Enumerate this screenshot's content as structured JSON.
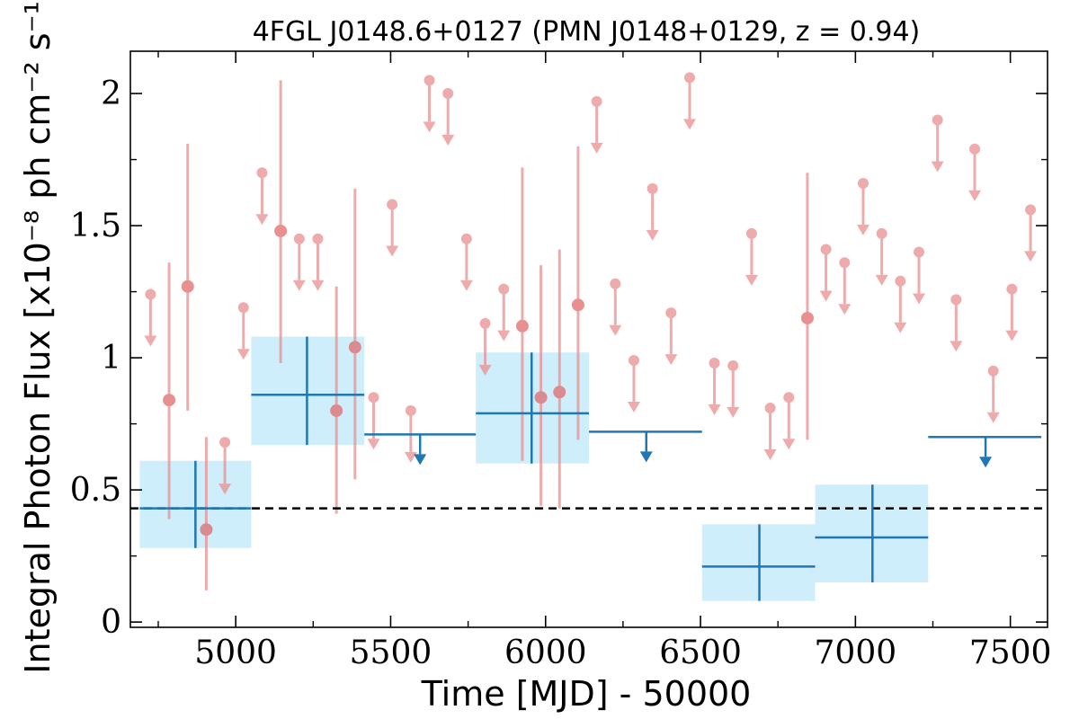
{
  "chart_data": {
    "type": "scatter",
    "title": "4FGL J0148.6+0127 (PMN J0148+0129, z = 0.94)",
    "xlabel": "Time [MJD] - 50000",
    "ylabel": "Integral Photon Flux [x10⁻⁸ ph cm⁻² s⁻¹]",
    "xlim": [
      4660,
      7620
    ],
    "ylim": [
      -0.02,
      2.16
    ],
    "x_ticks": [
      5000,
      5500,
      6000,
      6500,
      7000,
      7500
    ],
    "x_tick_labels": [
      "5000",
      "5500",
      "6000",
      "6500",
      "7000",
      "7500"
    ],
    "y_ticks": [
      0,
      0.5,
      1,
      1.5,
      2
    ],
    "y_tick_labels": [
      "0",
      "0.5",
      "1",
      "1.5",
      "2"
    ],
    "baseline": 0.43,
    "colors": {
      "short_bins": "#e88c8c",
      "long_bins": "#1f77b4",
      "long_bins_fill": "#cfeefc",
      "baseline": "#000000"
    },
    "series": [
      {
        "kind": "short_bin_detections",
        "points": [
          {
            "x": 4785,
            "y": 0.84,
            "ylow": 0.39,
            "yhigh": 1.36
          },
          {
            "x": 4845,
            "y": 1.27,
            "ylow": 0.8,
            "yhigh": 1.81
          },
          {
            "x": 4905,
            "y": 0.35,
            "ylow": 0.12,
            "yhigh": 0.7
          },
          {
            "x": 5145,
            "y": 1.48,
            "ylow": 0.98,
            "yhigh": 2.05
          },
          {
            "x": 5325,
            "y": 0.8,
            "ylow": 0.41,
            "yhigh": 1.27
          },
          {
            "x": 5385,
            "y": 1.04,
            "ylow": 0.54,
            "yhigh": 1.64
          },
          {
            "x": 5925,
            "y": 1.12,
            "ylow": 0.61,
            "yhigh": 1.72
          },
          {
            "x": 5985,
            "y": 0.85,
            "ylow": 0.44,
            "yhigh": 1.35
          },
          {
            "x": 6045,
            "y": 0.87,
            "ylow": 0.43,
            "yhigh": 1.41
          },
          {
            "x": 6105,
            "y": 1.2,
            "ylow": 0.69,
            "yhigh": 1.8
          },
          {
            "x": 6845,
            "y": 1.15,
            "ylow": 0.69,
            "yhigh": 1.7
          }
        ]
      },
      {
        "kind": "short_bin_upper_limits",
        "points": [
          {
            "x": 4725,
            "y": 1.24
          },
          {
            "x": 4965,
            "y": 0.68
          },
          {
            "x": 5025,
            "y": 1.19
          },
          {
            "x": 5085,
            "y": 1.7
          },
          {
            "x": 5205,
            "y": 1.45
          },
          {
            "x": 5265,
            "y": 1.45
          },
          {
            "x": 5445,
            "y": 0.85
          },
          {
            "x": 5505,
            "y": 1.58
          },
          {
            "x": 5565,
            "y": 0.8
          },
          {
            "x": 5625,
            "y": 2.05
          },
          {
            "x": 5685,
            "y": 2.0
          },
          {
            "x": 5745,
            "y": 1.45
          },
          {
            "x": 5805,
            "y": 1.13
          },
          {
            "x": 5865,
            "y": 1.26
          },
          {
            "x": 6165,
            "y": 1.97
          },
          {
            "x": 6225,
            "y": 1.28
          },
          {
            "x": 6285,
            "y": 0.99
          },
          {
            "x": 6345,
            "y": 1.64
          },
          {
            "x": 6405,
            "y": 1.17
          },
          {
            "x": 6465,
            "y": 2.06
          },
          {
            "x": 6545,
            "y": 0.98
          },
          {
            "x": 6605,
            "y": 0.97
          },
          {
            "x": 6665,
            "y": 1.47
          },
          {
            "x": 6725,
            "y": 0.81
          },
          {
            "x": 6785,
            "y": 0.85
          },
          {
            "x": 6905,
            "y": 1.41
          },
          {
            "x": 6965,
            "y": 1.36
          },
          {
            "x": 7025,
            "y": 1.66
          },
          {
            "x": 7085,
            "y": 1.47
          },
          {
            "x": 7145,
            "y": 1.29
          },
          {
            "x": 7205,
            "y": 1.4
          },
          {
            "x": 7265,
            "y": 1.9
          },
          {
            "x": 7325,
            "y": 1.22
          },
          {
            "x": 7385,
            "y": 1.79
          },
          {
            "x": 7445,
            "y": 0.95
          },
          {
            "x": 7505,
            "y": 1.26
          },
          {
            "x": 7565,
            "y": 1.56
          }
        ]
      },
      {
        "kind": "long_bin_detections",
        "points": [
          {
            "x": 4870,
            "x0": 4690,
            "x1": 5050,
            "y": 0.43,
            "ylow": 0.28,
            "yhigh": 0.61
          },
          {
            "x": 5230,
            "x0": 5050,
            "x1": 5415,
            "y": 0.86,
            "ylow": 0.67,
            "yhigh": 1.08
          },
          {
            "x": 5955,
            "x0": 5775,
            "x1": 6140,
            "y": 0.79,
            "ylow": 0.6,
            "yhigh": 1.02
          },
          {
            "x": 6690,
            "x0": 6505,
            "x1": 6870,
            "y": 0.21,
            "ylow": 0.08,
            "yhigh": 0.37
          },
          {
            "x": 7055,
            "x0": 6870,
            "x1": 7235,
            "y": 0.32,
            "ylow": 0.15,
            "yhigh": 0.52
          }
        ]
      },
      {
        "kind": "long_bin_upper_limits",
        "points": [
          {
            "x": 5595,
            "x0": 5415,
            "x1": 5775,
            "y": 0.71
          },
          {
            "x": 6325,
            "x0": 6140,
            "x1": 6505,
            "y": 0.72
          },
          {
            "x": 7420,
            "x0": 7235,
            "x1": 7600,
            "y": 0.7
          }
        ]
      }
    ]
  }
}
